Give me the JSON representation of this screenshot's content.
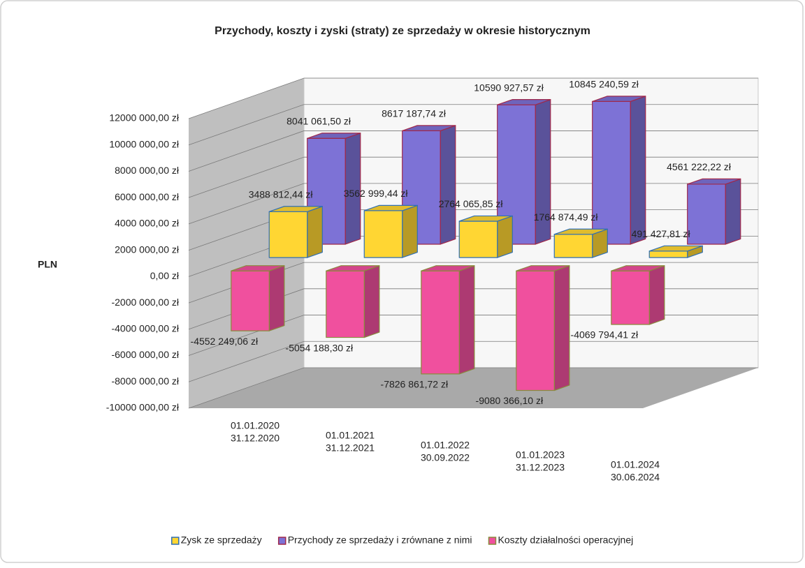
{
  "chart_data": {
    "type": "bar3d",
    "title": "Przychody, koszty  i zyski (straty) ze sprzedaży w okresie historycznym",
    "ylabel": "PLN",
    "categories": [
      [
        "01.01.2020",
        "31.12.2020"
      ],
      [
        "01.01.2021",
        "31.12.2021"
      ],
      [
        "01.01.2022",
        "30.09.2022"
      ],
      [
        "01.01.2023",
        "31.12.2023"
      ],
      [
        "01.01.2024",
        "30.06.2024"
      ]
    ],
    "series": [
      {
        "name": "Zysk ze sprzedaży",
        "color": "#ffd633",
        "edge": "#2f6fb5",
        "values": [
          3488812.44,
          3562999.44,
          2764065.85,
          1764874.49,
          491427.81
        ],
        "value_labels": [
          "3488 812,44 zł",
          "3562 999,44 zł",
          "2764 065,85 zł",
          "1764 874,49 zł",
          "491 427,81 zł"
        ]
      },
      {
        "name": "Przychody ze sprzedaży i zrównane z nimi",
        "color": "#7d72d6",
        "edge": "#a0284a",
        "values": [
          8041061.5,
          8617187.74,
          10590927.57,
          10845240.59,
          4561222.22
        ],
        "value_labels": [
          "8041 061,50 zł",
          "8617 187,74 zł",
          "10590 927,57 zł",
          "10845 240,59 zł",
          "4561 222,22 zł"
        ]
      },
      {
        "name": "Koszty działalności operacyjnej",
        "color": "#f0509e",
        "edge": "#8a8a3c",
        "values": [
          -4552249.06,
          -5054188.3,
          -7826861.72,
          -9080366.1,
          -4069794.41
        ],
        "value_labels": [
          "-4552 249,06 zł",
          "-5054 188,30 zł",
          "-7826 861,72 zł",
          "-9080 366,10 zł",
          "-4069 794,41 zł"
        ]
      }
    ],
    "ylim": [
      -10000000,
      12000000
    ],
    "yticks": [
      {
        "value": -10000000,
        "label": "-10000 000,00 zł"
      },
      {
        "value": -8000000,
        "label": "-8000 000,00 zł"
      },
      {
        "value": -6000000,
        "label": "-6000 000,00 zł"
      },
      {
        "value": -4000000,
        "label": "-4000 000,00 zł"
      },
      {
        "value": -2000000,
        "label": "-2000 000,00 zł"
      },
      {
        "value": 0,
        "label": "0,00 zł"
      },
      {
        "value": 2000000,
        "label": "2000 000,00 zł"
      },
      {
        "value": 4000000,
        "label": "4000 000,00 zł"
      },
      {
        "value": 6000000,
        "label": "6000 000,00 zł"
      },
      {
        "value": 8000000,
        "label": "8000 000,00 zł"
      },
      {
        "value": 10000000,
        "label": "10000 000,00 zł"
      },
      {
        "value": 12000000,
        "label": "12000 000,00 zł"
      }
    ],
    "grid": true,
    "legend": "bottom"
  }
}
